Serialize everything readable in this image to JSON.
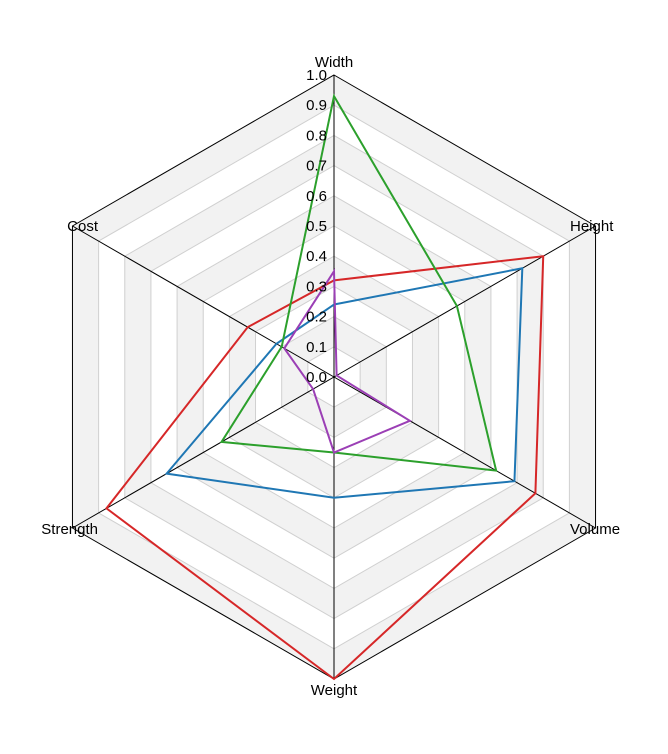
{
  "chart_data": {
    "type": "radar",
    "axes": [
      "Width",
      "Height",
      "Volume",
      "Weight",
      "Strength",
      "Cost"
    ],
    "rlim": [
      0,
      1.0
    ],
    "ticks": [
      "0.0",
      "0.1",
      "0.2",
      "0.3",
      "0.4",
      "0.5",
      "0.6",
      "0.7",
      "0.8",
      "0.9",
      "1.0"
    ],
    "grid": true,
    "series": [
      {
        "color": "#d62728",
        "values": [
          0.32,
          0.8,
          0.77,
          1.0,
          0.87,
          0.33
        ]
      },
      {
        "color": "#1f77b4",
        "values": [
          0.24,
          0.72,
          0.69,
          0.4,
          0.64,
          0.22
        ]
      },
      {
        "color": "#2ca02c",
        "values": [
          0.93,
          0.47,
          0.62,
          0.25,
          0.43,
          0.2
        ]
      },
      {
        "color": "#9b3fb5",
        "values": [
          0.35,
          0.01,
          0.29,
          0.25,
          0.08,
          0.19
        ]
      }
    ]
  }
}
